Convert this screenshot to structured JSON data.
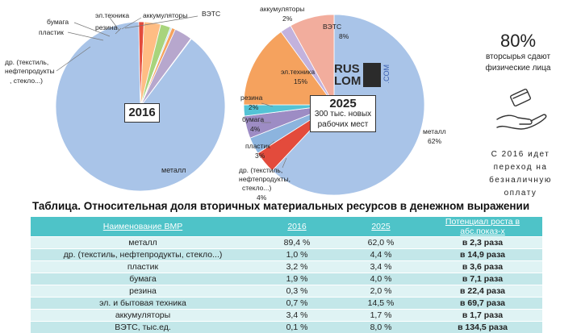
{
  "chart_data": [
    {
      "type": "pie",
      "title": "2016",
      "labels": [
        "металл",
        "др. (текстиль, нефтепродукты, стекло...)",
        "пластик",
        "бумага",
        "резина",
        "эл.техника",
        "аккумуляторы",
        "ВЭТС"
      ],
      "values": [
        89.4,
        1.0,
        3.2,
        1.9,
        0.3,
        0.7,
        3.4,
        0.1
      ],
      "colors": [
        "#a9c4e8",
        "#e34b3c",
        "#ffbd84",
        "#a8d47c",
        "#b7e1ec",
        "#f5a25e",
        "#b7a7cd",
        "#f2ad9d"
      ]
    },
    {
      "type": "pie",
      "title": "2025",
      "subtitle": "300 тыс. новых рабочих мест",
      "labels": [
        "металл",
        "др. (текстиль, нефтепродукты, стекло...)",
        "пластик",
        "бумага",
        "резина",
        "эл.техника",
        "аккумуляторы",
        "ВЭТС"
      ],
      "values": [
        62,
        4,
        3,
        4,
        2,
        15,
        2,
        8
      ],
      "slice_labels": [
        "62%",
        "4%",
        "3%",
        "4%",
        "2%",
        "15%",
        "2%",
        "8%"
      ],
      "colors": [
        "#a9c4e8",
        "#e34b3c",
        "#8cb4de",
        "#9d8cc4",
        "#54c3d5",
        "#f5a25e",
        "#c3b2dd",
        "#f2ad9d"
      ]
    },
    {
      "type": "table",
      "title": "Таблица. Относительная доля вторичных материальных ресурсов в денежном выражении",
      "columns": [
        "Наименование ВМР",
        "2016",
        "2025",
        "Потенциал роста в абс.показ-х"
      ],
      "rows": [
        [
          "металл",
          "89,4 %",
          "62,0 %",
          "в 2,3 раза"
        ],
        [
          "др. (текстиль, нефтепродукты, стекло...)",
          "1,0 %",
          "4,4 %",
          "в 14,9 раза"
        ],
        [
          "пластик",
          "3,2 %",
          "3,4 %",
          "в 3,6 раза"
        ],
        [
          "бумага",
          "1,9 %",
          "4,0 %",
          "в 7,1 раза"
        ],
        [
          "резина",
          "0,3 %",
          "2,0 %",
          "в 22,4 раза"
        ],
        [
          "эл. и бытовая техника",
          "0,7 %",
          "14,5 %",
          "в 69,7 раза"
        ],
        [
          "аккумуляторы",
          "3,4 %",
          "1,7 %",
          "в 1,7 раза"
        ],
        [
          "ВЭТС, тыс.ед.",
          "0,1 %",
          "8,0 %",
          "в 134,5 раза"
        ]
      ]
    }
  ],
  "pie2016_labels": {
    "metal": "металл",
    "other_l1": "др. (текстиль,",
    "other_l2": "нефтепродукты",
    "other_l3": ", стекло...)",
    "plastic": "пластик",
    "paper": "бумага",
    "rubber": "резина",
    "electro": "эл.техника",
    "accum": "аккумуляторы",
    "vets": "ВЭТС"
  },
  "pie2025_labels": {
    "metal": "металл",
    "metal_pct": "62%",
    "electro": "эл.техника",
    "electro_pct": "15%",
    "accum": "аккумуляторы",
    "accum_pct": "2%",
    "vets": "ВЭТС",
    "vets_pct": "8%",
    "rubber": "резина",
    "rubber_pct": "2%",
    "paper": "бумага",
    "paper_pct": "4%",
    "plastic": "пластик",
    "plastic_pct": "3%",
    "other_l1": "др. (текстиль,",
    "other_l2": "нефтепродукты,",
    "other_l3": "стекло...)",
    "other_pct": "4%"
  },
  "year_2016": "2016",
  "year_2025": "2025",
  "jobs_note": "300 тыс. новых рабочих мест",
  "logo": {
    "text_top": "RUS",
    "text_bottom": "LOM",
    "com": ".COM"
  },
  "side": {
    "pct": "80%",
    "line1": "вторсырья сдают",
    "line2": "физические лица",
    "note_l1": "С 2016 идет",
    "note_l2": "переход на",
    "note_l3": "безналичную",
    "note_l4": "оплату"
  }
}
